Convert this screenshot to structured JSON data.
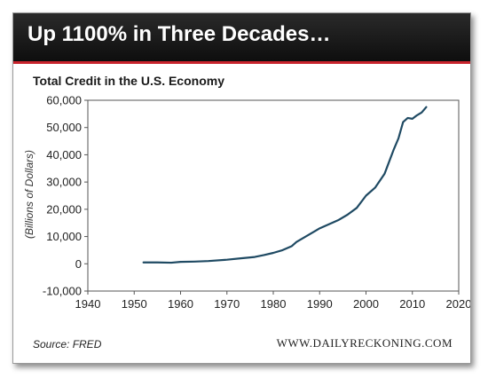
{
  "header": {
    "title": "Up 1100% in Three Decades…"
  },
  "footer": {
    "source": "Source: FRED",
    "site": "WWW.DAILYRECKONING.COM"
  },
  "colors": {
    "line": "#1f4a63",
    "header_bg": "#1a1a1a",
    "header_accent": "#c8232c"
  },
  "chart_data": {
    "type": "line",
    "title": "Total Credit in the U.S. Economy",
    "xlabel": "",
    "ylabel": "(Billions of Dollars)",
    "xlim": [
      1940,
      2020
    ],
    "ylim": [
      -10000,
      60000
    ],
    "x_ticks": [
      1940,
      1950,
      1960,
      1970,
      1980,
      1990,
      2000,
      2010,
      2020
    ],
    "y_ticks": [
      -10000,
      0,
      10000,
      20000,
      30000,
      40000,
      50000,
      60000
    ],
    "x_tick_labels": [
      "1940",
      "1950",
      "1960",
      "1970",
      "1980",
      "1990",
      "2000",
      "2010",
      "2020"
    ],
    "y_tick_labels": [
      "-10,000",
      "0",
      "10,000",
      "20,000",
      "30,000",
      "40,000",
      "50,000",
      "60,000"
    ],
    "grid": false,
    "series": [
      {
        "x": [
          1952,
          1955,
          1958,
          1960,
          1963,
          1966,
          1970,
          1973,
          1976,
          1978,
          1980,
          1982,
          1984,
          1985,
          1987,
          1989,
          1990,
          1992,
          1994,
          1996,
          1998,
          2000,
          2002,
          2004,
          2006,
          2007,
          2008,
          2009,
          2010,
          2011,
          2012,
          2013
        ],
        "y": [
          500,
          500,
          400,
          700,
          800,
          1000,
          1500,
          2000,
          2500,
          3200,
          4000,
          5000,
          6500,
          8000,
          10000,
          12000,
          13000,
          14500,
          16000,
          18000,
          20500,
          25000,
          28000,
          33000,
          42000,
          46000,
          52000,
          53500,
          53200,
          54500,
          55500,
          57500
        ]
      }
    ]
  }
}
